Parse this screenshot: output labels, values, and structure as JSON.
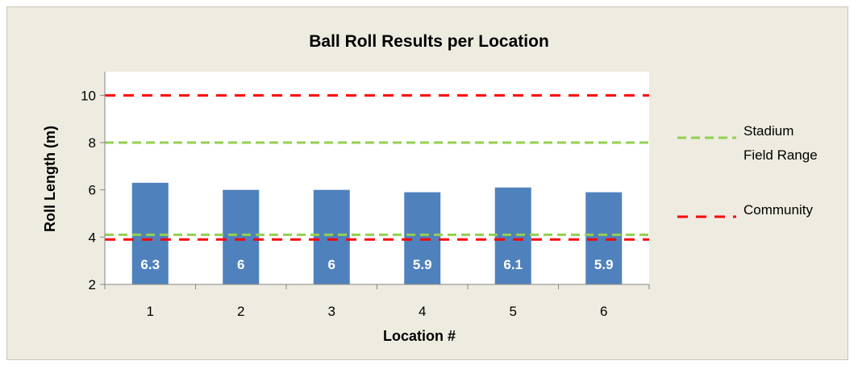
{
  "chart_data": {
    "type": "bar",
    "title": "Ball Roll Results per Location",
    "xlabel": "Location #",
    "ylabel": "Roll Length (m)",
    "categories": [
      "1",
      "2",
      "3",
      "4",
      "5",
      "6"
    ],
    "series": [
      {
        "values": [
          6.3,
          6,
          6,
          5.9,
          6.1,
          5.9
        ],
        "color": "#4f81bd",
        "data_labels": [
          "6.3",
          "6",
          "6",
          "5.9",
          "6.1",
          "5.9"
        ]
      }
    ],
    "ylim": [
      2,
      11
    ],
    "yticks": [
      2,
      4,
      6,
      8,
      10
    ],
    "ytick_labels": [
      "2",
      "4",
      "6",
      "8",
      "10"
    ],
    "grid": false,
    "reference_ranges": [
      {
        "name_lines": [
          "Stadium",
          "Field Range"
        ],
        "lower": 4.1,
        "upper": 8,
        "color": "#92d050",
        "style": "dashed"
      },
      {
        "name_lines": [
          "Community"
        ],
        "lower": 3.9,
        "upper": 10,
        "color": "#ff0000",
        "style": "dashed"
      }
    ],
    "legend_position": "right"
  }
}
